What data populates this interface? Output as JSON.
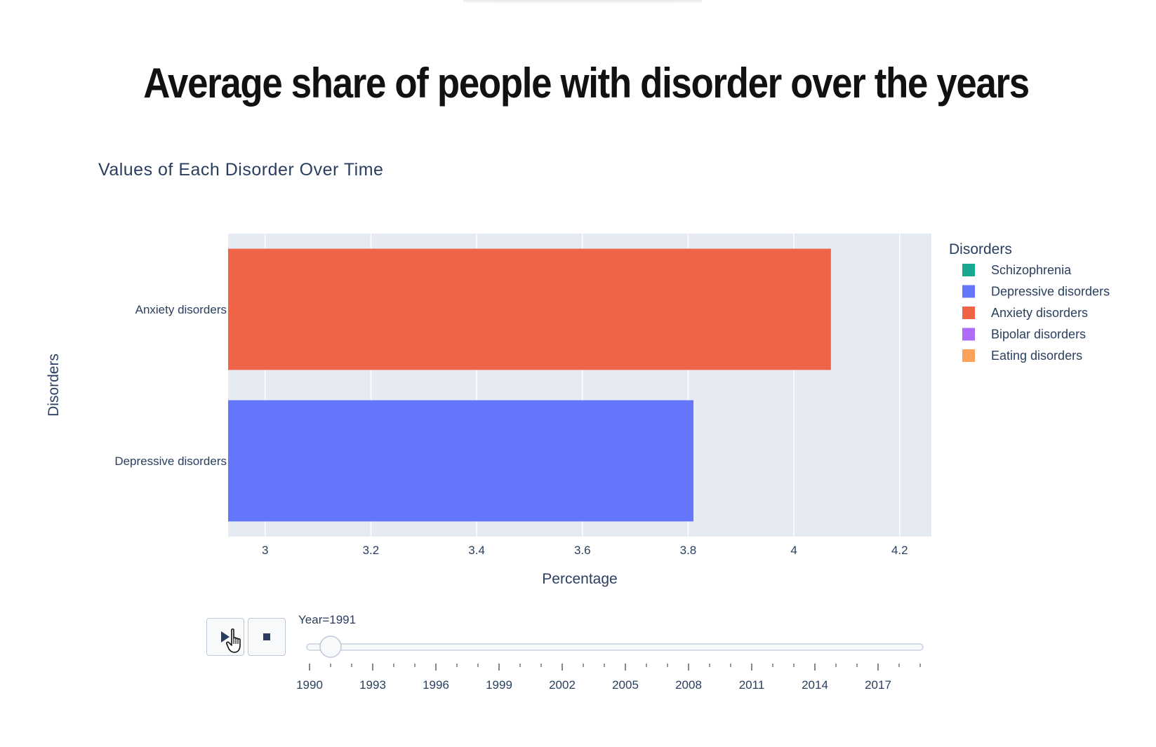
{
  "page": {
    "title": "Average share of people with disorder over the years"
  },
  "chart_data": {
    "type": "bar",
    "orientation": "horizontal",
    "title": "Values of Each Disorder Over Time",
    "xlabel": "Percentage",
    "ylabel": "Disorders",
    "xlim": [
      2.93,
      4.26
    ],
    "x_ticks": [
      3,
      3.2,
      3.4,
      3.6,
      3.8,
      4,
      4.2
    ],
    "x_tick_labels": [
      "3",
      "3.2",
      "3.4",
      "3.6",
      "3.8",
      "4",
      "4.2"
    ],
    "grid": true,
    "categories": [
      "Anxiety disorders",
      "Depressive disorders"
    ],
    "values": [
      4.07,
      3.81
    ],
    "bar_colors": [
      "#ef6346",
      "#6476fb"
    ],
    "plot_background": "#e5eaf3",
    "legend": {
      "title": "Disorders",
      "placement": "right",
      "items": [
        {
          "label": "Schizophrenia",
          "color": "#17a98f"
        },
        {
          "label": "Depressive disorders",
          "color": "#6476fb"
        },
        {
          "label": "Anxiety disorders",
          "color": "#ef6346"
        },
        {
          "label": "Bipolar disorders",
          "color": "#ad6cf7"
        },
        {
          "label": "Eating disorders",
          "color": "#fca25a"
        }
      ]
    }
  },
  "animation": {
    "play_icon": "play-icon",
    "stop_icon": "stop-icon",
    "slider": {
      "current_label": "Year=1991",
      "min": 1990,
      "max": 2019,
      "value": 1991,
      "major_ticks": [
        1990,
        1993,
        1996,
        1999,
        2002,
        2005,
        2008,
        2011,
        2014,
        2017
      ],
      "major_tick_labels": [
        "1990",
        "1993",
        "1996",
        "1999",
        "2002",
        "2005",
        "2008",
        "2011",
        "2014",
        "2017"
      ]
    }
  }
}
